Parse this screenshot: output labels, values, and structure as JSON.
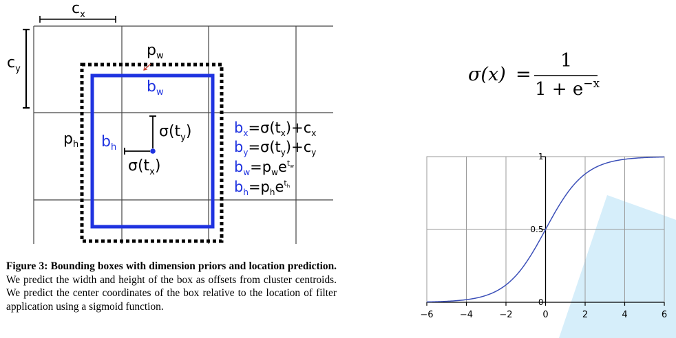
{
  "diagram": {
    "labels": {
      "cx": {
        "base": "c",
        "sub": "x"
      },
      "cy": {
        "base": "c",
        "sub": "y"
      },
      "pw": {
        "base": "p",
        "sub": "w"
      },
      "ph": {
        "base": "p",
        "sub": "h"
      },
      "bw": {
        "base": "b",
        "sub": "w"
      },
      "bh": {
        "base": "b",
        "sub": "h"
      },
      "sigma_ty": "σ(t",
      "sigma_ty_sub": "y",
      "sigma_tx": "σ(t",
      "sigma_tx_sub": "x",
      "close_paren": ")"
    },
    "equations": [
      {
        "lhs": "b",
        "lhs_sub": "x",
        "mid": "=σ(t",
        "mid_sub": "x",
        "rest": ")+c",
        "rest_sub": "x"
      },
      {
        "lhs": "b",
        "lhs_sub": "y",
        "mid": "=σ(t",
        "mid_sub": "y",
        "rest": ")+c",
        "rest_sub": "y"
      },
      {
        "lhs": "b",
        "lhs_sub": "w",
        "mid": "=p",
        "mid_sub": "w",
        "rest": "e",
        "sup": "t",
        "sup_sub": "w"
      },
      {
        "lhs": "b",
        "lhs_sub": "h",
        "mid": "=p",
        "mid_sub": "h",
        "rest": "e",
        "sup": "t",
        "sup_sub": "h"
      }
    ],
    "colors": {
      "prediction_box": "#1f33e0",
      "center_dot": "#1f33e0",
      "prior_box": "#000000",
      "grid": "#444444",
      "arrow": "#c0392b"
    }
  },
  "formula": {
    "lhs": "σ(x)",
    "equals": "=",
    "numerator": "1",
    "denominator_base": "1 + e",
    "denominator_exp": "−x"
  },
  "chart_data": {
    "type": "line",
    "title": "",
    "xlabel": "",
    "ylabel": "",
    "xlim": [
      -6,
      6
    ],
    "ylim": [
      0,
      1
    ],
    "xticks": [
      "−6",
      "−4",
      "−2",
      "0",
      "2",
      "4",
      "6"
    ],
    "yticks": [
      "0",
      "0.5",
      "1"
    ],
    "grid": true,
    "series": [
      {
        "function": "1/(1+exp(-x))",
        "x": [
          -6,
          -5,
          -4,
          -3,
          -2,
          -1,
          0,
          1,
          2,
          3,
          4,
          5,
          6
        ],
        "y": [
          0.002,
          0.007,
          0.018,
          0.047,
          0.119,
          0.269,
          0.5,
          0.731,
          0.881,
          0.953,
          0.982,
          0.993,
          0.998
        ]
      }
    ],
    "colors": {
      "line": "#3b4fb8",
      "grid": "#9a9a9a",
      "axis": "#000000",
      "watermark": "#d6eefa"
    }
  },
  "caption": {
    "label": "Figure 3:",
    "title": "Bounding boxes with dimension priors and location prediction.",
    "body": "We predict the width and height of the box as offsets from cluster centroids. We predict the center coordinates of the box relative to the location of filter application using a sigmoid function."
  }
}
